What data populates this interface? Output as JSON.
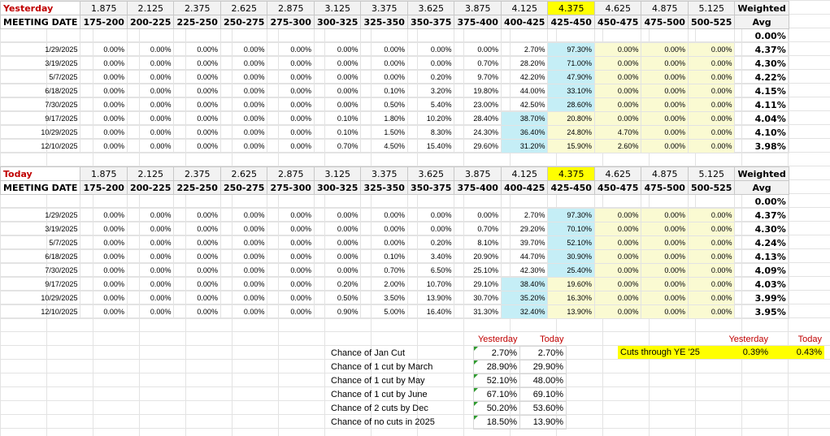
{
  "yesterday": {
    "title": "Yesterday",
    "rates": [
      "1.875",
      "2.125",
      "2.375",
      "2.625",
      "2.875",
      "3.125",
      "3.375",
      "3.625",
      "3.875",
      "4.125",
      "4.375",
      "4.625",
      "4.875",
      "5.125"
    ],
    "weighted_label": "Weighted",
    "meeting_label": "MEETING DATE",
    "ranges": [
      "175-200",
      "200-225",
      "225-250",
      "250-275",
      "275-300",
      "300-325",
      "325-350",
      "350-375",
      "375-400",
      "400-425",
      "425-450",
      "450-475",
      "475-500",
      "500-525"
    ],
    "avg_label": "Avg",
    "blank_avg": "0.00%",
    "rows": [
      {
        "date": "1/29/2025",
        "vals": [
          "0.00%",
          "0.00%",
          "0.00%",
          "0.00%",
          "0.00%",
          "0.00%",
          "0.00%",
          "0.00%",
          "0.00%",
          "2.70%",
          "97.30%",
          "0.00%",
          "0.00%",
          "0.00%"
        ],
        "avg": "4.37%"
      },
      {
        "date": "3/19/2025",
        "vals": [
          "0.00%",
          "0.00%",
          "0.00%",
          "0.00%",
          "0.00%",
          "0.00%",
          "0.00%",
          "0.00%",
          "0.70%",
          "28.20%",
          "71.00%",
          "0.00%",
          "0.00%",
          "0.00%"
        ],
        "avg": "4.30%"
      },
      {
        "date": "5/7/2025",
        "vals": [
          "0.00%",
          "0.00%",
          "0.00%",
          "0.00%",
          "0.00%",
          "0.00%",
          "0.00%",
          "0.20%",
          "9.70%",
          "42.20%",
          "47.90%",
          "0.00%",
          "0.00%",
          "0.00%"
        ],
        "avg": "4.22%"
      },
      {
        "date": "6/18/2025",
        "vals": [
          "0.00%",
          "0.00%",
          "0.00%",
          "0.00%",
          "0.00%",
          "0.00%",
          "0.10%",
          "3.20%",
          "19.80%",
          "44.00%",
          "33.10%",
          "0.00%",
          "0.00%",
          "0.00%"
        ],
        "avg": "4.15%"
      },
      {
        "date": "7/30/2025",
        "vals": [
          "0.00%",
          "0.00%",
          "0.00%",
          "0.00%",
          "0.00%",
          "0.00%",
          "0.50%",
          "5.40%",
          "23.00%",
          "42.50%",
          "28.60%",
          "0.00%",
          "0.00%",
          "0.00%"
        ],
        "avg": "4.11%"
      },
      {
        "date": "9/17/2025",
        "vals": [
          "0.00%",
          "0.00%",
          "0.00%",
          "0.00%",
          "0.00%",
          "0.10%",
          "1.80%",
          "10.20%",
          "28.40%",
          "38.70%",
          "20.80%",
          "0.00%",
          "0.00%",
          "0.00%"
        ],
        "avg": "4.04%"
      },
      {
        "date": "10/29/2025",
        "vals": [
          "0.00%",
          "0.00%",
          "0.00%",
          "0.00%",
          "0.00%",
          "0.10%",
          "1.50%",
          "8.30%",
          "24.30%",
          "36.40%",
          "24.80%",
          "4.70%",
          "0.00%",
          "0.00%"
        ],
        "avg": "4.10%"
      },
      {
        "date": "12/10/2025",
        "vals": [
          "0.00%",
          "0.00%",
          "0.00%",
          "0.00%",
          "0.00%",
          "0.70%",
          "4.50%",
          "15.40%",
          "29.60%",
          "31.20%",
          "15.90%",
          "2.60%",
          "0.00%",
          "0.00%"
        ],
        "avg": "3.98%"
      }
    ]
  },
  "today": {
    "title": "Today",
    "rates": [
      "1.875",
      "2.125",
      "2.375",
      "2.625",
      "2.875",
      "3.125",
      "3.375",
      "3.625",
      "3.875",
      "4.125",
      "4.375",
      "4.625",
      "4.875",
      "5.125"
    ],
    "weighted_label": "Weighted",
    "meeting_label": "MEETING DATE",
    "ranges": [
      "175-200",
      "200-225",
      "225-250",
      "250-275",
      "275-300",
      "300-325",
      "325-350",
      "350-375",
      "375-400",
      "400-425",
      "425-450",
      "450-475",
      "475-500",
      "500-525"
    ],
    "avg_label": "Avg",
    "blank_avg": "0.00%",
    "rows": [
      {
        "date": "1/29/2025",
        "vals": [
          "0.00%",
          "0.00%",
          "0.00%",
          "0.00%",
          "0.00%",
          "0.00%",
          "0.00%",
          "0.00%",
          "0.00%",
          "2.70%",
          "97.30%",
          "0.00%",
          "0.00%",
          "0.00%"
        ],
        "avg": "4.37%"
      },
      {
        "date": "3/19/2025",
        "vals": [
          "0.00%",
          "0.00%",
          "0.00%",
          "0.00%",
          "0.00%",
          "0.00%",
          "0.00%",
          "0.00%",
          "0.70%",
          "29.20%",
          "70.10%",
          "0.00%",
          "0.00%",
          "0.00%"
        ],
        "avg": "4.30%"
      },
      {
        "date": "5/7/2025",
        "vals": [
          "0.00%",
          "0.00%",
          "0.00%",
          "0.00%",
          "0.00%",
          "0.00%",
          "0.00%",
          "0.20%",
          "8.10%",
          "39.70%",
          "52.10%",
          "0.00%",
          "0.00%",
          "0.00%"
        ],
        "avg": "4.24%"
      },
      {
        "date": "6/18/2025",
        "vals": [
          "0.00%",
          "0.00%",
          "0.00%",
          "0.00%",
          "0.00%",
          "0.00%",
          "0.10%",
          "3.40%",
          "20.90%",
          "44.70%",
          "30.90%",
          "0.00%",
          "0.00%",
          "0.00%"
        ],
        "avg": "4.13%"
      },
      {
        "date": "7/30/2025",
        "vals": [
          "0.00%",
          "0.00%",
          "0.00%",
          "0.00%",
          "0.00%",
          "0.00%",
          "0.70%",
          "6.50%",
          "25.10%",
          "42.30%",
          "25.40%",
          "0.00%",
          "0.00%",
          "0.00%"
        ],
        "avg": "4.09%"
      },
      {
        "date": "9/17/2025",
        "vals": [
          "0.00%",
          "0.00%",
          "0.00%",
          "0.00%",
          "0.00%",
          "0.20%",
          "2.00%",
          "10.70%",
          "29.10%",
          "38.40%",
          "19.60%",
          "0.00%",
          "0.00%",
          "0.00%"
        ],
        "avg": "4.03%"
      },
      {
        "date": "10/29/2025",
        "vals": [
          "0.00%",
          "0.00%",
          "0.00%",
          "0.00%",
          "0.00%",
          "0.50%",
          "3.50%",
          "13.90%",
          "30.70%",
          "35.20%",
          "16.30%",
          "0.00%",
          "0.00%",
          "0.00%"
        ],
        "avg": "3.99%"
      },
      {
        "date": "12/10/2025",
        "vals": [
          "0.00%",
          "0.00%",
          "0.00%",
          "0.00%",
          "0.00%",
          "0.90%",
          "5.00%",
          "16.40%",
          "31.30%",
          "32.40%",
          "13.90%",
          "0.00%",
          "0.00%",
          "0.00%"
        ],
        "avg": "3.95%"
      }
    ]
  },
  "summary": {
    "col_yesterday": "Yesterday",
    "col_today": "Today",
    "rows": [
      {
        "label": "Chance of Jan Cut",
        "yesterday": "2.70%",
        "today": "2.70%"
      },
      {
        "label": "Chance of 1 cut by March",
        "yesterday": "28.90%",
        "today": "29.90%"
      },
      {
        "label": "Chance of 1 cut by May",
        "yesterday": "52.10%",
        "today": "48.00%"
      },
      {
        "label": "Chance of 1 cut by June",
        "yesterday": "67.10%",
        "today": "69.10%"
      },
      {
        "label": "Chance of 2 cuts by Dec",
        "yesterday": "50.20%",
        "today": "53.60%"
      },
      {
        "label": "Chance of no cuts in 2025",
        "yesterday": "18.50%",
        "today": "13.90%"
      }
    ]
  },
  "cuts": {
    "col_yesterday": "Yesterday",
    "col_today": "Today",
    "label": "Cuts through YE '25",
    "yesterday": "0.39%",
    "today": "0.43%"
  },
  "colors": {
    "current_rate": "#ffff00",
    "cyan_highlight": "#c5eef6",
    "pale_yellow": "#fafad2",
    "header_red": "#c00000"
  }
}
